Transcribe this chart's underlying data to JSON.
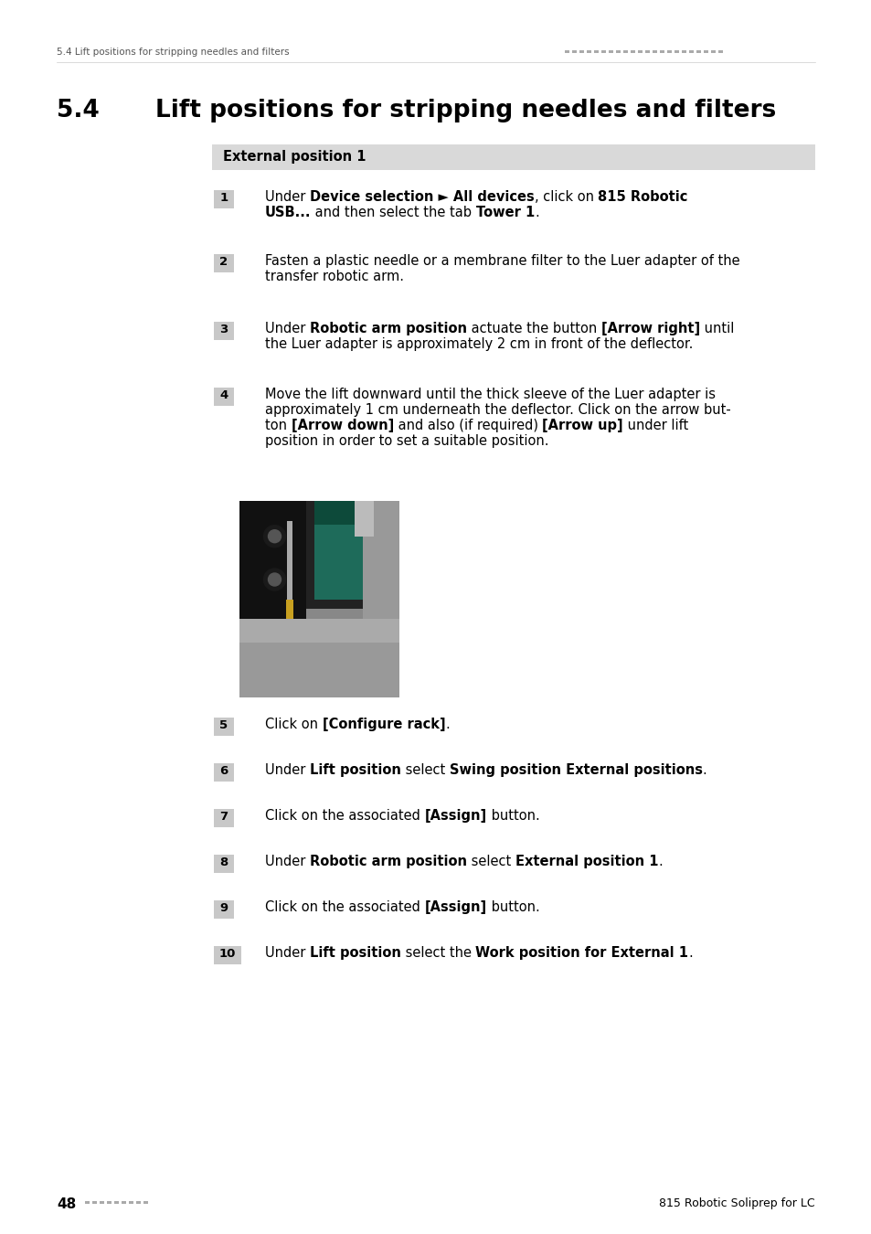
{
  "page_bg": "#ffffff",
  "header_text_left": "5.4 Lift positions for stripping needles and filters",
  "header_dots_color": "#aaaaaa",
  "section_number": "5.4",
  "section_title": "Lift positions for stripping needles and filters",
  "section_box_label": "External position 1",
  "section_box_bg": "#d9d9d9",
  "step_num_bg": "#c8c8c8",
  "footer_page": "48",
  "footer_right": "815 Robotic Soliprep for LC",
  "footer_dots_color": "#aaaaaa",
  "steps": [
    {
      "num": "1",
      "lines": [
        [
          [
            "Under ",
            false
          ],
          [
            "Device selection ► All devices",
            true
          ],
          [
            ", click on ",
            false
          ],
          [
            "815 Robotic",
            true
          ]
        ],
        [
          [
            "USB...",
            true
          ],
          [
            " and then select the tab ",
            false
          ],
          [
            "Tower 1",
            true
          ],
          [
            ".",
            false
          ]
        ]
      ]
    },
    {
      "num": "2",
      "lines": [
        [
          [
            "Fasten a plastic needle or a membrane filter to the Luer adapter of the",
            false
          ]
        ],
        [
          [
            "transfer robotic arm.",
            false
          ]
        ]
      ]
    },
    {
      "num": "3",
      "lines": [
        [
          [
            "Under ",
            false
          ],
          [
            "Robotic arm position",
            true
          ],
          [
            " actuate the button ",
            false
          ],
          [
            "[Arrow right]",
            true
          ],
          [
            " until",
            false
          ]
        ],
        [
          [
            "the Luer adapter is approximately 2 cm in front of the deflector.",
            false
          ]
        ]
      ]
    },
    {
      "num": "4",
      "lines": [
        [
          [
            "Move the lift downward until the thick sleeve of the Luer adapter is",
            false
          ]
        ],
        [
          [
            "approximately 1 cm underneath the deflector. Click on the arrow but-",
            false
          ]
        ],
        [
          [
            "ton ",
            false
          ],
          [
            "[Arrow down]",
            true
          ],
          [
            " and also (if required) ",
            false
          ],
          [
            "[Arrow up]",
            true
          ],
          [
            " under lift",
            false
          ]
        ],
        [
          [
            "position in order to set a suitable position.",
            false
          ]
        ]
      ]
    },
    {
      "num": "5",
      "lines": [
        [
          [
            "Click on ",
            false
          ],
          [
            "[Configure rack]",
            true
          ],
          [
            ".",
            false
          ]
        ]
      ]
    },
    {
      "num": "6",
      "lines": [
        [
          [
            "Under ",
            false
          ],
          [
            "Lift position",
            true
          ],
          [
            " select ",
            false
          ],
          [
            "Swing position External positions",
            true
          ],
          [
            ".",
            false
          ]
        ]
      ]
    },
    {
      "num": "7",
      "lines": [
        [
          [
            "Click on the associated ",
            false
          ],
          [
            "[Assign]",
            true
          ],
          [
            " button.",
            false
          ]
        ]
      ]
    },
    {
      "num": "8",
      "lines": [
        [
          [
            "Under ",
            false
          ],
          [
            "Robotic arm position",
            true
          ],
          [
            " select ",
            false
          ],
          [
            "External position 1",
            true
          ],
          [
            ".",
            false
          ]
        ]
      ]
    },
    {
      "num": "9",
      "lines": [
        [
          [
            "Click on the associated ",
            false
          ],
          [
            "[Assign]",
            true
          ],
          [
            " button.",
            false
          ]
        ]
      ]
    },
    {
      "num": "10",
      "lines": [
        [
          [
            "Under ",
            false
          ],
          [
            "Lift position",
            true
          ],
          [
            " select the ",
            false
          ],
          [
            "Work position for External 1",
            true
          ],
          [
            ".",
            false
          ]
        ]
      ]
    }
  ]
}
